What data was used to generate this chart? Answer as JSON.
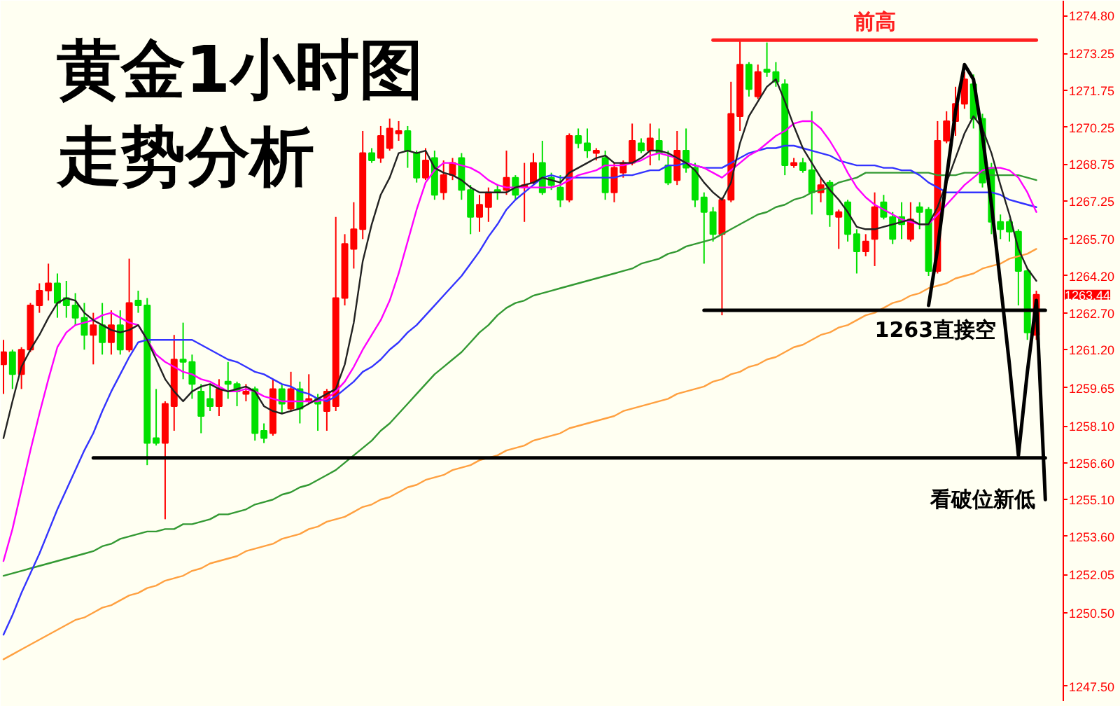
{
  "chart_data": {
    "type": "candlestick",
    "title": "黄金1小时图",
    "subtitle": "走势分析",
    "categories": [
      null,
      null,
      null,
      null,
      null,
      null,
      null,
      null,
      null,
      null,
      null,
      null,
      null,
      null,
      null,
      null,
      null,
      null,
      null,
      null,
      null,
      null,
      null,
      null,
      null,
      null,
      null,
      null,
      null,
      null,
      null,
      null,
      null,
      null,
      null,
      null,
      null,
      null,
      null,
      null,
      null,
      null,
      null,
      null,
      null,
      null,
      null,
      null,
      null,
      null,
      null,
      null,
      null,
      null,
      null,
      null,
      null,
      null,
      null,
      null,
      null,
      null,
      null,
      null,
      null,
      null,
      null,
      null,
      null,
      null,
      null,
      null,
      null,
      null,
      null,
      null,
      null,
      null,
      null,
      null,
      null,
      null,
      null,
      null,
      null,
      null,
      null,
      null,
      null,
      null,
      null,
      null,
      null,
      null,
      null,
      null,
      null,
      null,
      null,
      null,
      null,
      null,
      null,
      null,
      null,
      null,
      null,
      null,
      null,
      null,
      null,
      null,
      null,
      null,
      null,
      null,
      null
    ],
    "ohlc": [
      [
        1260.6,
        1261.6,
        1259.4,
        1261.1
      ],
      [
        1261.1,
        1261.2,
        1259.6,
        1260.2
      ],
      [
        1260.2,
        1261.3,
        1259.6,
        1261.2
      ],
      [
        1261.2,
        1263.1,
        1261.1,
        1263.0
      ],
      [
        1263.0,
        1263.9,
        1262.7,
        1263.6
      ],
      [
        1263.6,
        1264.7,
        1263.2,
        1263.9
      ],
      [
        1263.9,
        1264.3,
        1262.5,
        1263.1
      ],
      [
        1263.3,
        1264.0,
        1262.5,
        1263.0
      ],
      [
        1263.0,
        1263.5,
        1262.2,
        1262.5
      ],
      [
        1262.5,
        1263.1,
        1261.2,
        1261.8
      ],
      [
        1261.8,
        1262.7,
        1260.6,
        1262.2
      ],
      [
        1262.2,
        1263.1,
        1261.0,
        1261.5
      ],
      [
        1261.5,
        1262.8,
        1261.0,
        1262.2
      ],
      [
        1262.2,
        1262.8,
        1261.0,
        1261.2
      ],
      [
        1261.2,
        1264.9,
        1261.1,
        1263.1
      ],
      [
        1263.2,
        1263.6,
        1262.7,
        1263.0
      ],
      [
        1263.0,
        1263.3,
        1256.5,
        1257.4
      ],
      [
        1257.6,
        1259.6,
        1257.3,
        1257.4
      ],
      [
        1257.4,
        1259.1,
        1254.3,
        1259.0
      ],
      [
        1258.9,
        1261.8,
        1257.9,
        1260.8
      ],
      [
        1260.8,
        1262.3,
        1260.0,
        1260.7
      ],
      [
        1260.7,
        1261.0,
        1259.2,
        1259.8
      ],
      [
        1259.5,
        1259.8,
        1257.8,
        1258.5
      ],
      [
        1259.2,
        1259.8,
        1258.7,
        1258.9
      ],
      [
        1258.9,
        1260.0,
        1258.5,
        1259.6
      ],
      [
        1259.9,
        1260.7,
        1259.2,
        1259.8
      ],
      [
        1259.8,
        1259.9,
        1258.9,
        1259.5
      ],
      [
        1259.4,
        1259.8,
        1259.1,
        1259.5
      ],
      [
        1259.6,
        1259.7,
        1257.5,
        1257.8
      ],
      [
        1257.9,
        1258.2,
        1257.4,
        1257.6
      ],
      [
        1257.8,
        1260.0,
        1257.7,
        1259.6
      ],
      [
        1259.6,
        1259.8,
        1258.6,
        1259.0
      ],
      [
        1258.8,
        1260.3,
        1258.7,
        1259.6
      ],
      [
        1259.6,
        1259.9,
        1258.2,
        1258.8
      ],
      [
        1259.1,
        1260.2,
        1259.0,
        1259.2
      ],
      [
        1259.2,
        1259.4,
        1257.9,
        1259.0
      ],
      [
        1258.7,
        1259.6,
        1257.9,
        1259.5
      ],
      [
        1258.9,
        1266.6,
        1258.7,
        1263.3
      ],
      [
        1263.3,
        1265.9,
        1263.0,
        1265.5
      ],
      [
        1265.3,
        1267.2,
        1264.5,
        1266.1
      ],
      [
        1266.1,
        1270.1,
        1265.7,
        1269.2
      ],
      [
        1269.2,
        1269.4,
        1268.8,
        1268.9
      ],
      [
        1269.0,
        1270.3,
        1268.8,
        1269.9
      ],
      [
        1269.4,
        1270.6,
        1269.3,
        1270.2
      ],
      [
        1270.0,
        1270.5,
        1269.7,
        1270.1
      ],
      [
        1270.1,
        1270.3,
        1268.6,
        1269.3
      ],
      [
        1269.2,
        1269.3,
        1268.0,
        1268.2
      ],
      [
        1268.2,
        1269.4,
        1268.1,
        1268.9
      ],
      [
        1269.0,
        1269.3,
        1267.3,
        1267.5
      ],
      [
        1267.6,
        1268.9,
        1267.3,
        1268.3
      ],
      [
        1268.3,
        1269.0,
        1268.1,
        1268.8
      ],
      [
        1269.0,
        1269.2,
        1267.3,
        1267.7
      ],
      [
        1267.7,
        1267.9,
        1265.9,
        1266.6
      ],
      [
        1266.6,
        1267.5,
        1266.0,
        1267.1
      ],
      [
        1267.0,
        1267.8,
        1266.4,
        1267.6
      ],
      [
        1267.7,
        1267.9,
        1267.3,
        1267.6
      ],
      [
        1267.7,
        1269.3,
        1267.5,
        1268.2
      ],
      [
        1268.2,
        1268.3,
        1267.3,
        1267.5
      ],
      [
        1267.8,
        1268.8,
        1266.4,
        1267.9
      ],
      [
        1268.0,
        1269.2,
        1267.9,
        1268.8
      ],
      [
        1268.8,
        1269.7,
        1267.5,
        1267.6
      ],
      [
        1268.2,
        1268.4,
        1267.7,
        1267.9
      ],
      [
        1267.8,
        1268.3,
        1267.0,
        1267.3
      ],
      [
        1267.3,
        1270.0,
        1267.2,
        1269.9
      ],
      [
        1269.9,
        1270.2,
        1269.4,
        1269.6
      ],
      [
        1269.6,
        1270.2,
        1269.0,
        1269.3
      ],
      [
        1269.2,
        1269.4,
        1268.9,
        1269.3
      ],
      [
        1269.0,
        1269.3,
        1267.3,
        1267.6
      ],
      [
        1267.6,
        1268.8,
        1267.2,
        1268.6
      ],
      [
        1268.4,
        1268.9,
        1268.2,
        1268.8
      ],
      [
        1268.8,
        1270.4,
        1268.7,
        1269.7
      ],
      [
        1269.6,
        1269.8,
        1269.2,
        1269.3
      ],
      [
        1269.3,
        1270.4,
        1268.7,
        1269.8
      ],
      [
        1269.7,
        1270.2,
        1268.9,
        1269.2
      ],
      [
        1268.7,
        1269.3,
        1267.9,
        1268.0
      ],
      [
        1268.1,
        1270.1,
        1267.9,
        1269.3
      ],
      [
        1269.3,
        1270.2,
        1268.4,
        1268.6
      ],
      [
        1268.6,
        1268.8,
        1267.0,
        1267.3
      ],
      [
        1267.4,
        1267.6,
        1264.7,
        1266.8
      ],
      [
        1266.8,
        1267.0,
        1265.6,
        1265.9
      ],
      [
        1265.9,
        1267.4,
        1262.6,
        1267.3
      ],
      [
        1267.3,
        1272.1,
        1267.2,
        1270.8
      ],
      [
        1270.7,
        1273.8,
        1270.1,
        1272.8
      ],
      [
        1272.8,
        1272.9,
        1271.5,
        1271.8
      ],
      [
        1271.5,
        1272.8,
        1271.4,
        1272.5
      ],
      [
        1272.6,
        1273.7,
        1272.3,
        1272.5
      ],
      [
        1272.5,
        1272.9,
        1271.9,
        1272.1
      ],
      [
        1272.0,
        1272.2,
        1268.3,
        1268.7
      ],
      [
        1268.7,
        1269.0,
        1268.6,
        1268.8
      ],
      [
        1268.8,
        1269.0,
        1268.4,
        1268.5
      ],
      [
        1268.5,
        1270.9,
        1266.7,
        1267.6
      ],
      [
        1267.6,
        1268.2,
        1267.2,
        1267.9
      ],
      [
        1268.0,
        1268.1,
        1266.2,
        1266.7
      ],
      [
        1266.6,
        1266.9,
        1265.3,
        1266.8
      ],
      [
        1267.2,
        1267.3,
        1265.6,
        1265.9
      ],
      [
        1265.9,
        1266.1,
        1264.3,
        1265.2
      ],
      [
        1265.2,
        1265.9,
        1265.0,
        1265.6
      ],
      [
        1265.7,
        1267.6,
        1264.6,
        1267.0
      ],
      [
        1267.2,
        1267.5,
        1266.5,
        1266.6
      ],
      [
        1266.6,
        1266.8,
        1265.5,
        1265.7
      ],
      [
        1266.6,
        1267.2,
        1265.7,
        1266.3
      ],
      [
        1265.7,
        1267.2,
        1265.6,
        1266.5
      ],
      [
        1267.0,
        1267.2,
        1266.1,
        1266.8
      ],
      [
        1266.9,
        1267.0,
        1264.2,
        1264.4
      ],
      [
        1264.4,
        1270.5,
        1264.3,
        1269.7
      ],
      [
        1269.7,
        1270.9,
        1269.6,
        1270.5
      ],
      [
        1270.5,
        1271.9,
        1269.9,
        1271.2
      ],
      [
        1271.2,
        1272.5,
        1271.0,
        1272.2
      ],
      [
        1272.0,
        1272.4,
        1270.2,
        1270.6
      ],
      [
        1270.6,
        1270.8,
        1267.8,
        1268.0
      ],
      [
        1268.6,
        1268.8,
        1265.9,
        1266.4
      ],
      [
        1266.4,
        1266.7,
        1265.7,
        1266.1
      ],
      [
        1266.4,
        1266.5,
        1265.6,
        1266.0
      ],
      [
        1266.0,
        1266.1,
        1263.0,
        1264.4
      ],
      [
        1264.4,
        1264.5,
        1261.6,
        1261.9
      ],
      [
        1261.8,
        1263.6,
        1261.6,
        1263.44
      ],
      null
    ],
    "colors": [
      "#ff0000",
      "#00e000",
      "#ff0000",
      "#ff0000",
      "#ff0000",
      "#ff0000",
      "#00e000",
      "#00e000",
      "#00e000",
      "#00e000",
      "#ff0000",
      "#00e000",
      "#ff0000",
      "#00e000",
      "#ff0000",
      "#00e000",
      "#00e000",
      "#00e000",
      "#ff0000",
      "#ff0000",
      "#00e000",
      "#00e000",
      "#00e000",
      "#00e000",
      "#ff0000",
      "#00e000",
      "#00e000",
      "#ff0000",
      "#00e000",
      "#00e000",
      "#ff0000",
      "#00e000",
      "#ff0000",
      "#00e000",
      "#ff0000",
      "#00e000",
      "#ff0000",
      "#ff0000",
      "#ff0000",
      "#ff0000",
      "#ff0000",
      "#00e000",
      "#ff0000",
      "#ff0000",
      "#ff0000",
      "#00e000",
      "#00e000",
      "#ff0000",
      "#00e000",
      "#ff0000",
      "#ff0000",
      "#00e000",
      "#00e000",
      "#ff0000",
      "#ff0000",
      "#00e000",
      "#ff0000",
      "#00e000",
      "#ff0000",
      "#ff0000",
      "#00e000",
      "#00e000",
      "#00e000",
      "#ff0000",
      "#00e000",
      "#00e000",
      "#ff0000",
      "#00e000",
      "#ff0000",
      "#ff0000",
      "#ff0000",
      "#00e000",
      "#ff0000",
      "#00e000",
      "#00e000",
      "#ff0000",
      "#00e000",
      "#00e000",
      "#00e000",
      "#00e000",
      "#ff0000",
      "#ff0000",
      "#ff0000",
      "#00e000",
      "#ff0000",
      "#00e000",
      "#00e000",
      "#00e000",
      "#ff0000",
      "#00e000",
      "#00e000",
      "#ff0000",
      "#00e000",
      "#ff0000",
      "#00e000",
      "#00e000",
      "#ff0000",
      "#ff0000",
      "#00e000",
      "#00e000",
      "#00e000",
      "#ff0000",
      "#00e000",
      "#00e000",
      "#ff0000",
      "#ff0000",
      "#ff0000",
      "#ff0000",
      "#00e000",
      "#00e000",
      "#00e000",
      "#00e000",
      "#00e000",
      "#00e000",
      "#00e000",
      "#ff0000",
      null
    ],
    "series": [
      {
        "type": "line",
        "color": "#ffa040",
        "values": [
          1248.6,
          1248.8,
          1249.0,
          1249.2,
          1249.4,
          1249.6,
          1249.8,
          1250.0,
          1250.2,
          1250.3,
          1250.5,
          1250.7,
          1250.8,
          1251.0,
          1251.2,
          1251.3,
          1251.5,
          1251.6,
          1251.8,
          1251.9,
          1252.0,
          1252.2,
          1252.3,
          1252.5,
          1252.6,
          1252.7,
          1252.8,
          1253.0,
          1253.1,
          1253.2,
          1253.3,
          1253.5,
          1253.6,
          1253.7,
          1253.9,
          1254.0,
          1254.2,
          1254.3,
          1254.4,
          1254.6,
          1254.8,
          1254.9,
          1255.1,
          1255.2,
          1255.4,
          1255.6,
          1255.7,
          1255.9,
          1256.0,
          1256.1,
          1256.3,
          1256.4,
          1256.5,
          1256.7,
          1256.8,
          1256.9,
          1257.1,
          1257.2,
          1257.3,
          1257.5,
          1257.6,
          1257.7,
          1257.8,
          1258.0,
          1258.1,
          1258.2,
          1258.3,
          1258.4,
          1258.5,
          1258.7,
          1258.8,
          1258.9,
          1259.0,
          1259.1,
          1259.2,
          1259.4,
          1259.5,
          1259.6,
          1259.7,
          1259.9,
          1260.0,
          1260.2,
          1260.3,
          1260.5,
          1260.6,
          1260.8,
          1260.9,
          1261.1,
          1261.3,
          1261.4,
          1261.6,
          1261.8,
          1261.9,
          1262.1,
          1262.2,
          1262.4,
          1262.6,
          1262.7,
          1262.9,
          1263.1,
          1263.2,
          1263.4,
          1263.5,
          1263.7,
          1263.8,
          1263.9,
          1264.1,
          1264.2,
          1264.3,
          1264.5,
          1264.6,
          1264.7,
          1264.9,
          1265.0,
          1265.1,
          1265.3,
          null
        ]
      },
      {
        "type": "line",
        "color": "#339933",
        "values": [
          1252.0,
          1252.1,
          1252.2,
          1252.3,
          1252.4,
          1252.5,
          1252.6,
          1252.7,
          1252.8,
          1252.9,
          1253.0,
          1253.2,
          1253.3,
          1253.5,
          1253.6,
          1253.7,
          1253.8,
          1253.8,
          1253.9,
          1253.9,
          1254.1,
          1254.1,
          1254.2,
          1254.3,
          1254.5,
          1254.5,
          1254.6,
          1254.7,
          1254.9,
          1255.0,
          1255.1,
          1255.3,
          1255.4,
          1255.6,
          1255.7,
          1255.9,
          1256.1,
          1256.3,
          1256.6,
          1256.9,
          1257.2,
          1257.5,
          1257.9,
          1258.2,
          1258.6,
          1259.0,
          1259.4,
          1259.8,
          1260.2,
          1260.5,
          1260.8,
          1261.1,
          1261.5,
          1261.9,
          1262.2,
          1262.6,
          1262.9,
          1263.1,
          1263.2,
          1263.4,
          1263.5,
          1263.6,
          1263.7,
          1263.8,
          1263.9,
          1264.0,
          1264.1,
          1264.2,
          1264.3,
          1264.4,
          1264.5,
          1264.7,
          1264.8,
          1264.9,
          1265.1,
          1265.2,
          1265.4,
          1265.5,
          1265.6,
          1265.7,
          1265.9,
          1266.1,
          1266.3,
          1266.5,
          1266.7,
          1266.8,
          1267.0,
          1267.1,
          1267.3,
          1267.4,
          1267.6,
          1267.7,
          1267.8,
          1268.0,
          1268.1,
          1268.2,
          1268.4,
          1268.4,
          1268.4,
          1268.4,
          1268.4,
          1268.4,
          1268.4,
          1268.4,
          1268.3,
          1268.3,
          1268.3,
          1268.4,
          1268.4,
          1268.4,
          1268.3,
          1268.3,
          1268.3,
          1268.3,
          1268.2,
          1268.1,
          null
        ]
      },
      {
        "type": "line",
        "color": "#3333ff",
        "values": [
          1249.6,
          1250.4,
          1251.3,
          1252.1,
          1252.9,
          1253.8,
          1254.7,
          1255.5,
          1256.3,
          1257.1,
          1257.8,
          1258.7,
          1259.5,
          1260.2,
          1260.9,
          1261.5,
          1261.6,
          1261.6,
          1261.6,
          1261.6,
          1261.6,
          1261.6,
          1261.4,
          1261.2,
          1261.0,
          1260.8,
          1260.7,
          1260.5,
          1260.3,
          1260.2,
          1260.0,
          1259.8,
          1259.7,
          1259.5,
          1259.4,
          1259.2,
          1259.1,
          1259.3,
          1259.6,
          1259.9,
          1260.3,
          1260.5,
          1260.8,
          1261.2,
          1261.5,
          1261.9,
          1262.2,
          1262.6,
          1263.0,
          1263.4,
          1263.8,
          1264.2,
          1264.7,
          1265.2,
          1265.8,
          1266.3,
          1266.9,
          1267.3,
          1267.6,
          1267.9,
          1268.2,
          1268.3,
          1268.2,
          1268.2,
          1268.2,
          1268.2,
          1268.2,
          1268.2,
          1268.2,
          1268.3,
          1268.3,
          1268.4,
          1268.5,
          1268.5,
          1268.7,
          1268.7,
          1268.8,
          1268.7,
          1268.6,
          1268.6,
          1268.6,
          1268.8,
          1269.0,
          1269.2,
          1269.3,
          1269.4,
          1269.4,
          1269.5,
          1269.5,
          1269.4,
          1269.3,
          1269.2,
          1269.1,
          1268.9,
          1268.8,
          1268.7,
          1268.7,
          1268.7,
          1268.6,
          1268.6,
          1268.5,
          1268.5,
          1268.3,
          1268.0,
          1267.8,
          1267.6,
          1267.6,
          1267.6,
          1267.6,
          1267.6,
          1267.6,
          1267.5,
          1267.3,
          1267.2,
          1267.1,
          1267.0,
          null
        ]
      },
      {
        "type": "line",
        "color": "#ff00ff",
        "values": [
          1252.6,
          1253.9,
          1255.5,
          1257.1,
          1258.6,
          1260.0,
          1261.3,
          1261.9,
          1262.2,
          1262.3,
          1262.4,
          1262.6,
          1262.7,
          1262.5,
          1262.3,
          1262.2,
          1261.6,
          1261.0,
          1260.7,
          1260.5,
          1260.3,
          1260.2,
          1260.0,
          1259.9,
          1259.7,
          1259.5,
          1259.5,
          1259.6,
          1259.5,
          1259.3,
          1259.2,
          1259.1,
          1259.1,
          1259.1,
          1259.1,
          1259.1,
          1259.2,
          1259.5,
          1259.9,
          1260.5,
          1261.2,
          1261.8,
          1262.4,
          1263.2,
          1264.3,
          1265.6,
          1266.9,
          1268.0,
          1268.5,
          1268.8,
          1268.8,
          1268.7,
          1268.6,
          1268.4,
          1268.1,
          1267.9,
          1267.8,
          1267.8,
          1267.8,
          1267.8,
          1267.8,
          1267.8,
          1267.9,
          1268.1,
          1268.3,
          1268.4,
          1268.5,
          1268.7,
          1268.7,
          1268.7,
          1268.8,
          1268.9,
          1269.1,
          1269.2,
          1269.1,
          1269.0,
          1268.8,
          1268.7,
          1268.6,
          1268.4,
          1268.2,
          1268.5,
          1268.8,
          1269.1,
          1269.3,
          1269.6,
          1269.9,
          1270.1,
          1270.4,
          1270.5,
          1270.5,
          1270.2,
          1269.7,
          1269.1,
          1268.4,
          1267.8,
          1267.4,
          1267.1,
          1266.9,
          1266.7,
          1266.5,
          1266.4,
          1266.3,
          1266.3,
          1266.7,
          1267.1,
          1267.5,
          1267.9,
          1268.2,
          1268.5,
          1268.6,
          1268.6,
          1268.5,
          1268.2,
          1267.6,
          1266.8,
          null
        ]
      },
      {
        "type": "line",
        "color": "#222222",
        "values": [
          1257.6,
          1259.1,
          1260.5,
          1261.2,
          1261.8,
          1262.5,
          1263.1,
          1263.3,
          1263.2,
          1262.7,
          1262.4,
          1262.2,
          1262.0,
          1261.9,
          1262.0,
          1262.2,
          1261.6,
          1260.8,
          1260.0,
          1259.5,
          1259.1,
          1259.5,
          1259.7,
          1259.8,
          1259.6,
          1259.5,
          1259.6,
          1259.7,
          1259.5,
          1258.9,
          1258.7,
          1258.6,
          1258.7,
          1258.8,
          1259.0,
          1259.2,
          1259.4,
          1259.6,
          1260.6,
          1262.3,
          1264.8,
          1266.3,
          1267.5,
          1268.2,
          1269.2,
          1269.3,
          1269.2,
          1269.3,
          1268.6,
          1268.4,
          1268.3,
          1268.1,
          1267.8,
          1267.6,
          1267.6,
          1267.6,
          1267.6,
          1267.8,
          1267.9,
          1268.0,
          1268.2,
          1268.1,
          1268.0,
          1268.4,
          1268.6,
          1268.8,
          1269.0,
          1269.1,
          1268.8,
          1268.8,
          1268.8,
          1269.0,
          1269.3,
          1269.3,
          1269.2,
          1269.0,
          1268.8,
          1268.5,
          1268.0,
          1267.6,
          1267.3,
          1268.0,
          1269.6,
          1270.7,
          1271.3,
          1271.9,
          1272.2,
          1271.3,
          1270.3,
          1269.4,
          1268.8,
          1268.2,
          1267.7,
          1267.3,
          1266.8,
          1266.2,
          1266.1,
          1266.1,
          1266.2,
          1266.3,
          1266.4,
          1266.5,
          1266.3,
          1266.3,
          1267.0,
          1268.0,
          1269.0,
          1270.0,
          1270.7,
          1270.2,
          1269.2,
          1267.9,
          1266.7,
          1265.3,
          1264.5,
          1264.0,
          null
        ]
      },
      {
        "type": "line",
        "name": "前高",
        "color": "#ff2020",
        "values": [
          null,
          null,
          null,
          null,
          null,
          null,
          null,
          null,
          null,
          null,
          null,
          null,
          null,
          null,
          null,
          null,
          null,
          null,
          null,
          null,
          null,
          null,
          null,
          null,
          null,
          null,
          null,
          null,
          null,
          null,
          null,
          null,
          null,
          null,
          null,
          null,
          null,
          null,
          null,
          null,
          null,
          null,
          null,
          null,
          null,
          null,
          null,
          null,
          null,
          null,
          null,
          null,
          null,
          null,
          null,
          null,
          null,
          null,
          null,
          null,
          null,
          null,
          null,
          null,
          null,
          null,
          null,
          null,
          null,
          null,
          null,
          null,
          null,
          null,
          null,
          null,
          null,
          null,
          null,
          1273.8,
          1273.8,
          1273.8,
          1273.8,
          1273.8,
          1273.8,
          1273.8,
          1273.8,
          1273.8,
          1273.8,
          1273.8,
          1273.8,
          1273.8,
          1273.8,
          1273.8,
          1273.8,
          1273.8,
          1273.8,
          1273.8,
          1273.8,
          1273.8,
          1273.8,
          1273.8,
          1273.8,
          1273.8,
          1273.8,
          1273.8,
          1273.8,
          1273.8,
          1273.8,
          1273.8,
          1273.8,
          1273.8,
          1273.8,
          1273.8,
          1273.8,
          1273.8,
          null
        ]
      },
      {
        "type": "line",
        "name": "1263直接空",
        "color": "#000000",
        "values": [
          null,
          null,
          null,
          null,
          null,
          null,
          null,
          null,
          null,
          null,
          null,
          null,
          null,
          null,
          null,
          null,
          null,
          null,
          null,
          null,
          null,
          null,
          null,
          null,
          null,
          null,
          null,
          null,
          null,
          null,
          null,
          null,
          null,
          null,
          null,
          null,
          null,
          null,
          null,
          null,
          null,
          null,
          null,
          null,
          null,
          null,
          null,
          null,
          null,
          null,
          null,
          null,
          null,
          null,
          null,
          null,
          null,
          null,
          null,
          null,
          null,
          null,
          null,
          null,
          null,
          null,
          null,
          null,
          null,
          null,
          null,
          null,
          null,
          null,
          null,
          null,
          null,
          null,
          1262.8,
          1262.8,
          1262.8,
          1262.8,
          1262.8,
          1262.8,
          1262.8,
          1262.8,
          1262.8,
          1262.8,
          1262.8,
          1262.8,
          1262.8,
          1262.8,
          1262.8,
          1262.8,
          1262.8,
          1262.8,
          1262.8,
          1262.8,
          1262.8,
          1262.8,
          1262.8,
          1262.8,
          1262.8,
          1262.8,
          1262.8,
          1262.8,
          1262.8,
          1262.8,
          1262.8,
          1262.8,
          1262.8,
          1262.8,
          1262.8,
          1262.8,
          1262.8,
          1262.8,
          1262.8
        ]
      },
      {
        "type": "line",
        "color": "#000000",
        "values": [
          null,
          null,
          null,
          null,
          null,
          null,
          null,
          null,
          null,
          null,
          1256.8,
          1256.8,
          1256.8,
          1256.8,
          1256.8,
          1256.8,
          1256.8,
          1256.8,
          1256.8,
          1256.8,
          1256.8,
          1256.8,
          1256.8,
          1256.8,
          1256.8,
          1256.8,
          1256.8,
          1256.8,
          1256.8,
          1256.8,
          1256.8,
          1256.8,
          1256.8,
          1256.8,
          1256.8,
          1256.8,
          1256.8,
          1256.8,
          1256.8,
          1256.8,
          1256.8,
          1256.8,
          1256.8,
          1256.8,
          1256.8,
          1256.8,
          1256.8,
          1256.8,
          1256.8,
          1256.8,
          1256.8,
          1256.8,
          1256.8,
          1256.8,
          1256.8,
          1256.8,
          1256.8,
          1256.8,
          1256.8,
          1256.8,
          1256.8,
          1256.8,
          1256.8,
          1256.8,
          1256.8,
          1256.8,
          1256.8,
          1256.8,
          1256.8,
          1256.8,
          1256.8,
          1256.8,
          1256.8,
          1256.8,
          1256.8,
          1256.8,
          1256.8,
          1256.8,
          1256.8,
          1256.8,
          1256.8,
          1256.8,
          1256.8,
          1256.8,
          1256.8,
          1256.8,
          1256.8,
          1256.8,
          1256.8,
          1256.8,
          1256.8,
          1256.8,
          1256.8,
          1256.8,
          1256.8,
          1256.8,
          1256.8,
          1256.8,
          1256.8,
          1256.8,
          1256.8,
          1256.8,
          1256.8,
          1256.8,
          1256.8,
          1256.8,
          1256.8,
          1256.8,
          1256.8,
          1256.8,
          1256.8,
          1256.8,
          1256.8,
          1256.8,
          1256.8,
          1256.8,
          1256.8
        ]
      },
      {
        "type": "line",
        "name": "看破位新低",
        "color": "#000000",
        "values": [
          null,
          null,
          null,
          null,
          null,
          null,
          null,
          null,
          null,
          null,
          null,
          null,
          null,
          null,
          null,
          null,
          null,
          null,
          null,
          null,
          null,
          null,
          null,
          null,
          null,
          null,
          null,
          null,
          null,
          null,
          null,
          null,
          null,
          null,
          null,
          null,
          null,
          null,
          null,
          null,
          null,
          null,
          null,
          null,
          null,
          null,
          null,
          null,
          null,
          null,
          null,
          null,
          null,
          null,
          null,
          null,
          null,
          null,
          null,
          null,
          null,
          null,
          null,
          null,
          null,
          null,
          null,
          null,
          null,
          null,
          null,
          null,
          null,
          null,
          null,
          null,
          null,
          null,
          null,
          null,
          null,
          null,
          null,
          null,
          null,
          null,
          null,
          null,
          null,
          null,
          null,
          null,
          null,
          null,
          null,
          null,
          null,
          null,
          null,
          null,
          null,
          null,
          null,
          1263.0,
          1265.3,
          1268.2,
          1270.9,
          1272.8,
          1272.2,
          1269.9,
          1267.1,
          1263.9,
          1260.6,
          1256.9,
          1260.3,
          1263.2,
          1255.1
        ]
      }
    ],
    "ylim": [
      1246.9,
      1275.4
    ],
    "yticks": [
      {
        "value": 1274.8,
        "label": "1274.80"
      },
      {
        "value": 1273.25,
        "label": "1273.25"
      },
      {
        "value": 1271.75,
        "label": "1271.75"
      },
      {
        "value": 1270.25,
        "label": "1270.25"
      },
      {
        "value": 1268.75,
        "label": "1268.75"
      },
      {
        "value": 1267.25,
        "label": "1267.25"
      },
      {
        "value": 1265.7,
        "label": "1265.70"
      },
      {
        "value": 1264.2,
        "label": "1264.20"
      },
      {
        "value": 1262.7,
        "label": "1262.70"
      },
      {
        "value": 1261.2,
        "label": "1261.20"
      },
      {
        "value": 1259.65,
        "label": "1259.65"
      },
      {
        "value": 1258.1,
        "label": "1258.10"
      },
      {
        "value": 1256.6,
        "label": "1256.60"
      },
      {
        "value": 1255.1,
        "label": "1255.10"
      },
      {
        "value": 1253.6,
        "label": "1253.60"
      },
      {
        "value": 1252.05,
        "label": "1252.05"
      },
      {
        "value": 1250.5,
        "label": "1250.50"
      },
      {
        "value": 1247.5,
        "label": "1247.50"
      }
    ],
    "annotations": [
      "1263.44"
    ],
    "grid": false,
    "tick_labels": "y"
  }
}
